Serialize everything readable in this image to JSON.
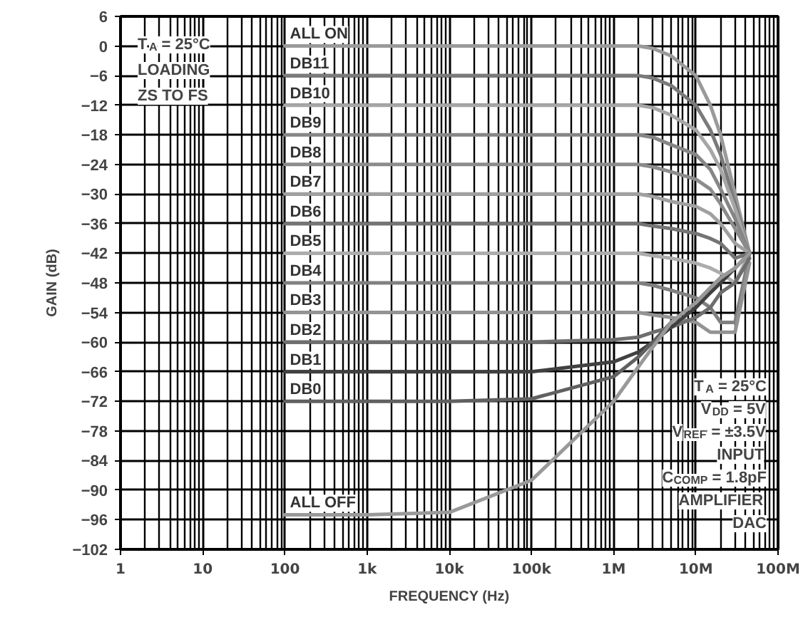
{
  "chart_data": {
    "type": "line",
    "xlabel": "FREQUENCY (Hz)",
    "ylabel": "GAIN (dB)",
    "log": "x",
    "grid": true,
    "marker": "none",
    "line_style": "solid",
    "x": [
      100,
      1000,
      10000,
      100000,
      1000000,
      2000000,
      3000000,
      5000000,
      10000000,
      15000000,
      20000000,
      30000000,
      45000000
    ],
    "xlim": [
      1,
      100000000
    ],
    "xticks": [
      {
        "value": 1,
        "label": "1"
      },
      {
        "value": 10,
        "label": "10"
      },
      {
        "value": 100,
        "label": "100"
      },
      {
        "value": 1000,
        "label": "1k"
      },
      {
        "value": 10000,
        "label": "10k"
      },
      {
        "value": 100000,
        "label": "100k"
      },
      {
        "value": 1000000,
        "label": "1M"
      },
      {
        "value": 10000000,
        "label": "10M"
      },
      {
        "value": 100000000,
        "label": "100M"
      }
    ],
    "ylim": [
      -102,
      6
    ],
    "yticks": [
      6,
      0,
      -6,
      -12,
      -18,
      -24,
      -30,
      -36,
      -42,
      -48,
      -54,
      -60,
      -66,
      -72,
      -78,
      -84,
      -90,
      -96,
      -102
    ],
    "series": [
      {
        "name": "ALL ON",
        "color": "#9a9a9a",
        "values": [
          0,
          0,
          0,
          0,
          0,
          0,
          -0.5,
          -2,
          -6,
          -12,
          -18,
          -30,
          -42
        ]
      },
      {
        "name": "DB11",
        "color": "#7a7a7a",
        "values": [
          -6,
          -6,
          -6,
          -6,
          -6,
          -6,
          -6.5,
          -8,
          -12,
          -17,
          -22,
          -32,
          -42
        ]
      },
      {
        "name": "DB10",
        "color": "#a6a6a6",
        "values": [
          -12,
          -12,
          -12,
          -12,
          -12,
          -12,
          -12.5,
          -14,
          -17,
          -21,
          -25,
          -33,
          -42
        ]
      },
      {
        "name": "DB9",
        "color": "#868686",
        "values": [
          -18,
          -18,
          -18,
          -18,
          -18,
          -18,
          -18.5,
          -20,
          -22,
          -25,
          -29,
          -35,
          -42
        ]
      },
      {
        "name": "DB8",
        "color": "#8c8c8c",
        "values": [
          -24,
          -24,
          -24,
          -24,
          -24,
          -24,
          -24.5,
          -25.5,
          -27,
          -29,
          -32,
          -37,
          -42
        ]
      },
      {
        "name": "DB7",
        "color": "#a0a0a0",
        "values": [
          -30,
          -30,
          -30,
          -30,
          -30,
          -30,
          -30.5,
          -31.5,
          -32.5,
          -34,
          -36,
          -40,
          -42
        ]
      },
      {
        "name": "DB6",
        "color": "#747474",
        "values": [
          -36,
          -36,
          -36,
          -36,
          -36,
          -36,
          -36.5,
          -37,
          -38,
          -39,
          -40,
          -43,
          -42
        ]
      },
      {
        "name": "DB5",
        "color": "#acacac",
        "values": [
          -42,
          -42,
          -42,
          -42,
          -42,
          -42,
          -42.5,
          -43,
          -44,
          -45,
          -46,
          -48,
          -42
        ]
      },
      {
        "name": "DB4",
        "color": "#808080",
        "values": [
          -48,
          -48,
          -48,
          -48,
          -48,
          -48,
          -48.5,
          -49.5,
          -51,
          -53,
          -56,
          -56,
          -42
        ]
      },
      {
        "name": "DB3",
        "color": "#939393",
        "values": [
          -54,
          -54,
          -54,
          -54,
          -54,
          -54,
          -54.5,
          -55,
          -56,
          -58,
          -58,
          -58,
          -44
        ]
      },
      {
        "name": "DB2",
        "color": "#6e6e6e",
        "values": [
          -60,
          -60,
          -60,
          -60,
          -59.5,
          -59,
          -58,
          -57,
          -55,
          -53,
          -50,
          -48,
          -43
        ]
      },
      {
        "name": "DB1",
        "color": "#404040",
        "values": [
          -66,
          -66,
          -66,
          -66,
          -64,
          -62,
          -60,
          -57,
          -53,
          -50,
          -48,
          -45,
          -42
        ]
      },
      {
        "name": "DB0",
        "color": "#606060",
        "values": [
          -72,
          -72,
          -72,
          -71.5,
          -67,
          -63,
          -60,
          -56,
          -52,
          -49,
          -47,
          -45,
          -42
        ]
      },
      {
        "name": "ALL OFF",
        "color": "#999999",
        "values": [
          -95,
          -95,
          -94.5,
          -88,
          -72,
          -65,
          -61,
          -56,
          -52,
          -49,
          -47,
          -45,
          -42
        ]
      }
    ],
    "annotations": [
      "T$_{A}$ = 25°C\nLOADING\nZS TO FS",
      "T$_{A}$ = 25°C\nV$_{DD}$ = 5V\nV$_{REF}$ = ±3.5V\nINPUT\nC$_{COMP}$ = 1.8pF\nAMPLIFIER\nDAC"
    ]
  }
}
